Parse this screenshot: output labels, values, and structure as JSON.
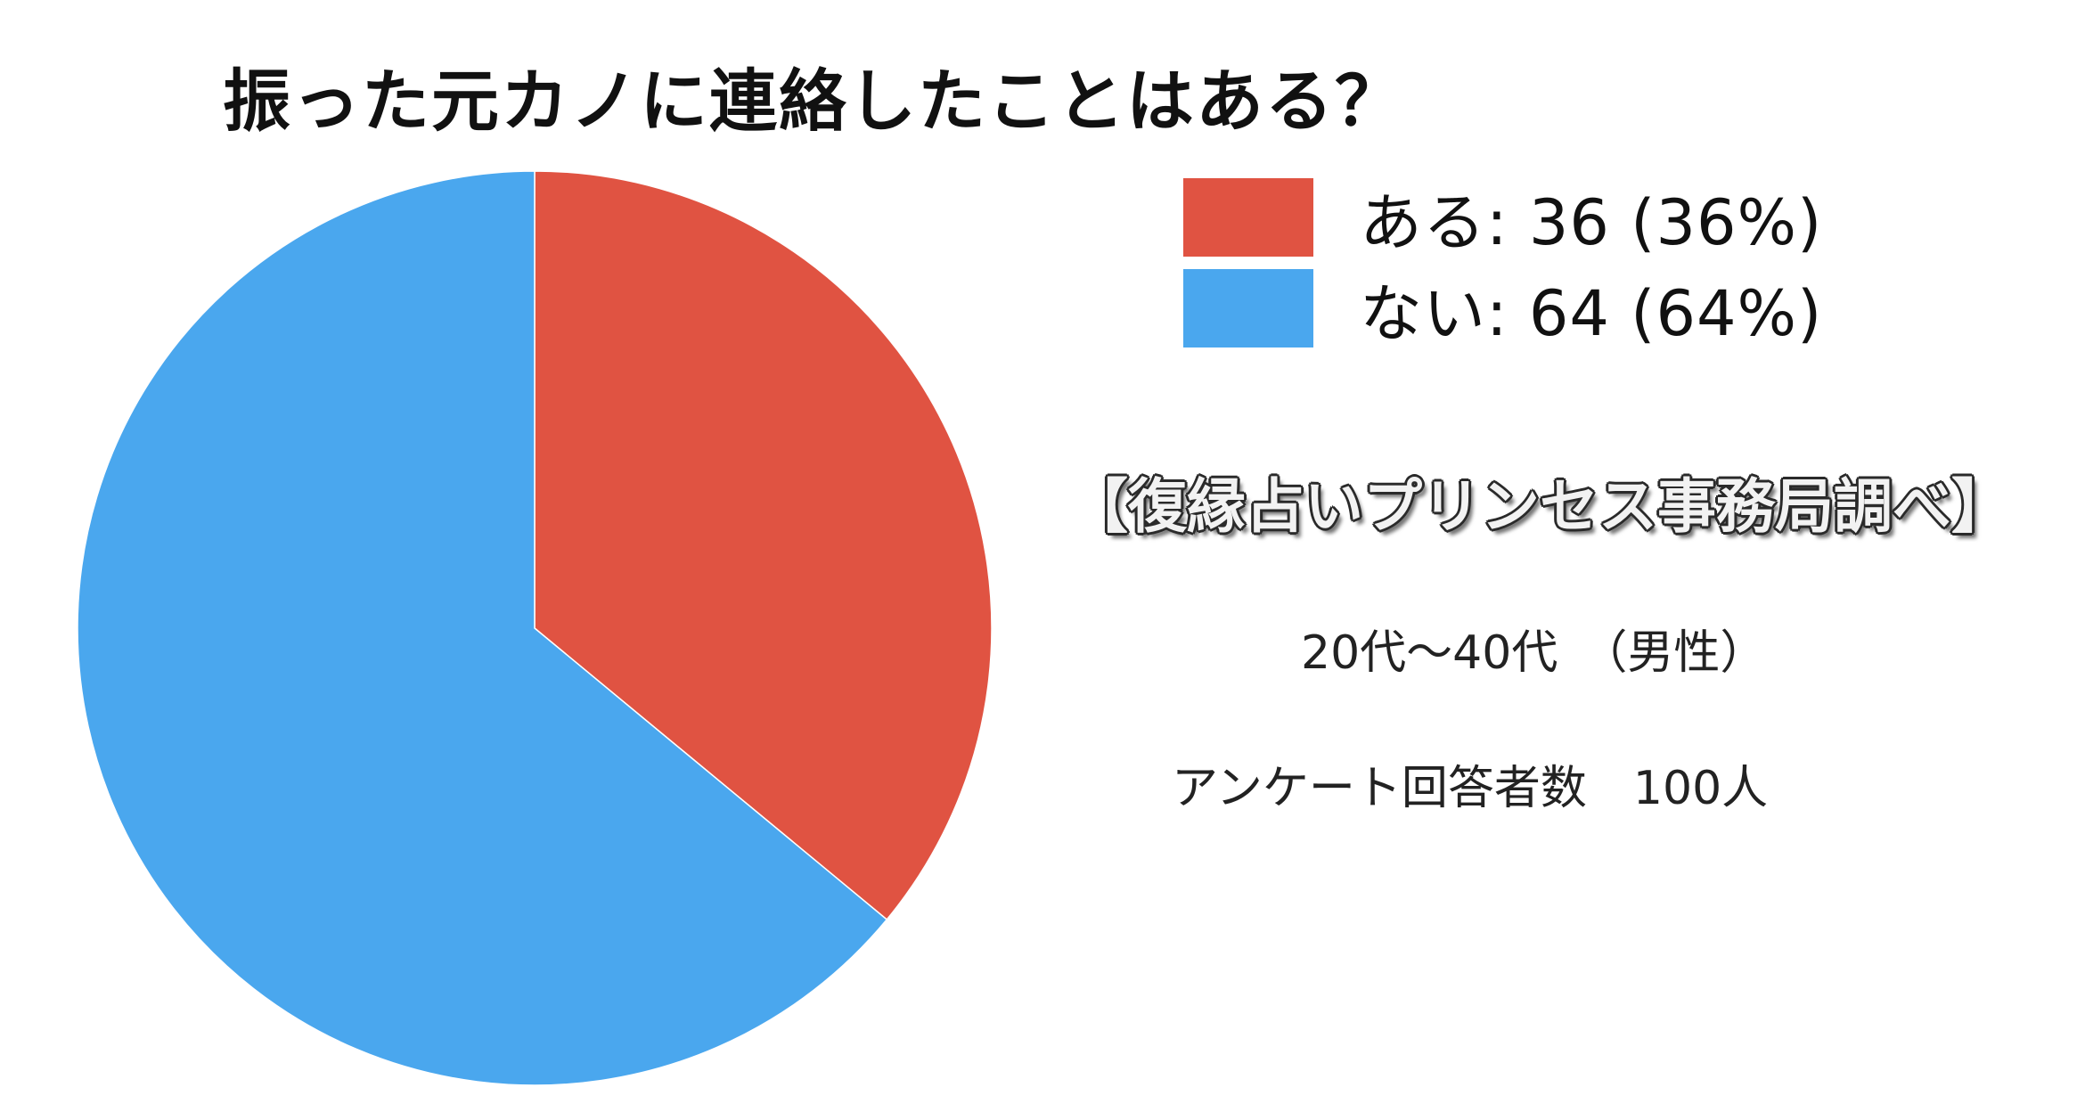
{
  "chart_data": {
    "type": "pie",
    "title": "振った元カノに連絡したことはある？",
    "categories": [
      "ある",
      "ない"
    ],
    "values": [
      36,
      64
    ],
    "percentages": [
      36,
      64
    ],
    "colors": [
      "#e05342",
      "#4aa7ee"
    ],
    "legend_position": "top-right"
  },
  "legend": {
    "items": [
      {
        "label": "ある: 36 (36%)",
        "color": "#e05342"
      },
      {
        "label": "ない: 64 (64%)",
        "color": "#4aa7ee"
      }
    ]
  },
  "notes": {
    "source": "【復縁占いプリンセス事務局調べ】",
    "demographic": "20代～40代　（男性）",
    "respondents": "アンケート回答者数　100人"
  }
}
